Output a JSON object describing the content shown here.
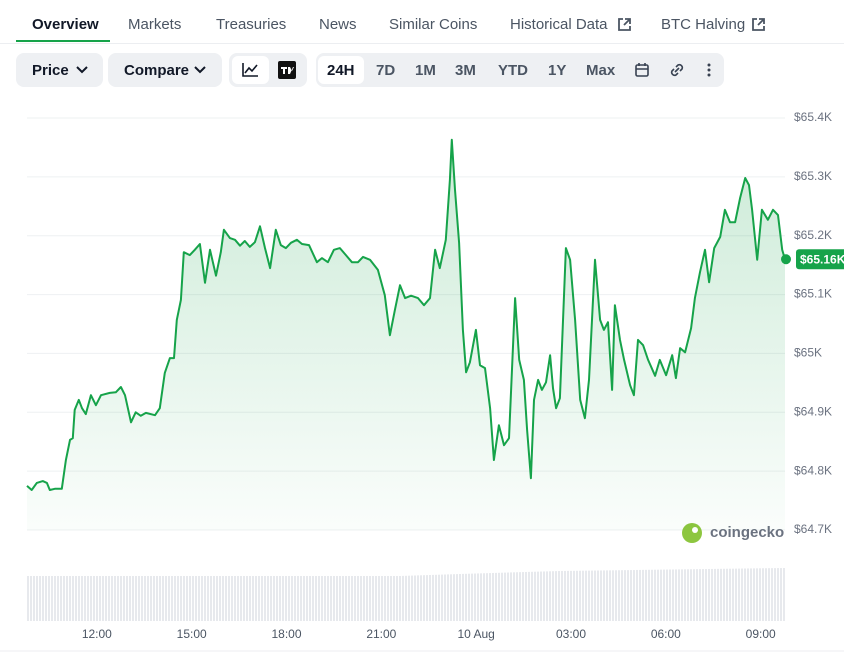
{
  "tabs": [
    "Overview",
    "Markets",
    "Treasuries",
    "News",
    "Similar Coins",
    "Historical Data",
    "BTC Halving"
  ],
  "toolbar": {
    "price": "Price",
    "compare": "Compare",
    "ranges": [
      "24H",
      "7D",
      "1M",
      "3M",
      "YTD",
      "1Y",
      "Max"
    ]
  },
  "watermark": "coingecko",
  "chart_data": {
    "type": "line",
    "color": "#16a34a",
    "grid": true,
    "x": [
      9.79,
      9.94,
      10.1,
      10.29,
      10.42,
      10.51,
      10.67,
      10.89,
      11.02,
      11.15,
      11.24,
      11.3,
      11.43,
      11.53,
      11.65,
      11.81,
      11.97,
      12.13,
      12.41,
      12.6,
      12.76,
      12.89,
      13.08,
      13.23,
      13.39,
      13.55,
      13.84,
      13.99,
      14.15,
      14.31,
      14.44,
      14.53,
      14.66,
      14.75,
      14.94,
      15.1,
      15.26,
      15.42,
      15.58,
      15.77,
      15.92,
      16.02,
      16.21,
      16.37,
      16.53,
      16.68,
      16.84,
      17.0,
      17.16,
      17.32,
      17.48,
      17.66,
      17.82,
      17.98,
      18.14,
      18.33,
      18.49,
      18.71,
      18.96,
      19.12,
      19.31,
      19.5,
      19.69,
      19.88,
      20.07,
      20.26,
      20.42,
      20.64,
      20.89,
      21.11,
      21.27,
      21.43,
      21.59,
      21.75,
      21.94,
      22.16,
      22.35,
      22.54,
      22.7,
      22.85,
      23.04,
      23.17,
      23.23,
      23.33,
      23.46,
      23.58,
      23.68,
      23.8,
      23.99,
      24.12,
      24.28,
      24.44,
      24.56,
      24.72,
      24.88,
      25.04,
      25.23,
      25.36,
      25.51,
      25.61,
      25.73,
      25.83,
      25.96,
      26.08,
      26.21,
      26.34,
      26.43,
      26.53,
      26.65,
      26.84,
      26.97,
      27.13,
      27.29,
      27.44,
      27.57,
      27.76,
      27.92,
      28.04,
      28.17,
      28.3,
      28.39,
      28.55,
      28.68,
      28.87,
      28.99,
      29.12,
      29.28,
      29.44,
      29.66,
      29.81,
      30.01,
      30.2,
      30.32,
      30.45,
      30.61,
      30.8,
      30.92,
      31.08,
      31.24,
      31.37,
      31.53,
      31.72,
      31.87,
      32.03,
      32.19,
      32.35,
      32.51,
      32.63,
      32.73,
      32.89,
      33.04,
      33.23,
      33.39,
      33.55,
      33.68,
      33.77
    ],
    "values": [
      64775,
      64768,
      64780,
      64783,
      64780,
      64768,
      64770,
      64770,
      64819,
      64853,
      64856,
      64904,
      64921,
      64907,
      64897,
      64929,
      64912,
      64929,
      64933,
      64934,
      64943,
      64929,
      64883,
      64900,
      64894,
      64899,
      64895,
      64907,
      64967,
      64992,
      64992,
      65057,
      65091,
      65172,
      65167,
      65176,
      65186,
      65120,
      65176,
      65132,
      65172,
      65210,
      65196,
      65193,
      65183,
      65191,
      65181,
      65189,
      65216,
      65179,
      65145,
      65210,
      65184,
      65179,
      65188,
      65193,
      65186,
      65184,
      65155,
      65162,
      65155,
      65176,
      65179,
      65167,
      65155,
      65155,
      65164,
      65159,
      65142,
      65099,
      65031,
      65074,
      65116,
      65094,
      65098,
      65094,
      65082,
      65094,
      65176,
      65145,
      65193,
      65295,
      65363,
      65278,
      65188,
      65040,
      64968,
      64985,
      65040,
      64980,
      64975,
      64907,
      64819,
      64878,
      64844,
      64856,
      65094,
      64989,
      64955,
      64870,
      64788,
      64921,
      64955,
      64938,
      64951,
      64997,
      64941,
      64907,
      64924,
      65179,
      65159,
      65057,
      64921,
      64890,
      64955,
      65159,
      65057,
      65040,
      65053,
      64938,
      65082,
      65023,
      64989,
      64946,
      64929,
      65023,
      65014,
      64989,
      64962,
      64989,
      64963,
      64997,
      64958,
      65009,
      65002,
      65043,
      65094,
      65138,
      65176,
      65121,
      65179,
      65198,
      65244,
      65223,
      65223,
      65264,
      65298,
      65286,
      65244,
      65159,
      65244,
      65227,
      65244,
      65235,
      65176,
      65160
    ],
    "last_label": "$65.16K",
    "xlim": [
      9.79,
      33.77
    ],
    "xticks": [
      {
        "value": 12,
        "label": "12:00"
      },
      {
        "value": 15,
        "label": "15:00"
      },
      {
        "value": 18,
        "label": "18:00"
      },
      {
        "value": 21,
        "label": "21:00"
      },
      {
        "value": 24,
        "label": "10 Aug"
      },
      {
        "value": 27,
        "label": "03:00"
      },
      {
        "value": 30,
        "label": "06:00"
      },
      {
        "value": 33,
        "label": "09:00"
      }
    ],
    "ylim": [
      64700,
      65400
    ],
    "yticks": [
      {
        "value": 64700,
        "label": "$64.7K"
      },
      {
        "value": 64800,
        "label": "$64.8K"
      },
      {
        "value": 64900,
        "label": "$64.9K"
      },
      {
        "value": 65000,
        "label": "$65K"
      },
      {
        "value": 65100,
        "label": "$65.1K"
      },
      {
        "value": 65200,
        "label": "$65.2K"
      },
      {
        "value": 65300,
        "label": "$65.3K"
      },
      {
        "value": 65400,
        "label": "$65.4K"
      }
    ]
  }
}
